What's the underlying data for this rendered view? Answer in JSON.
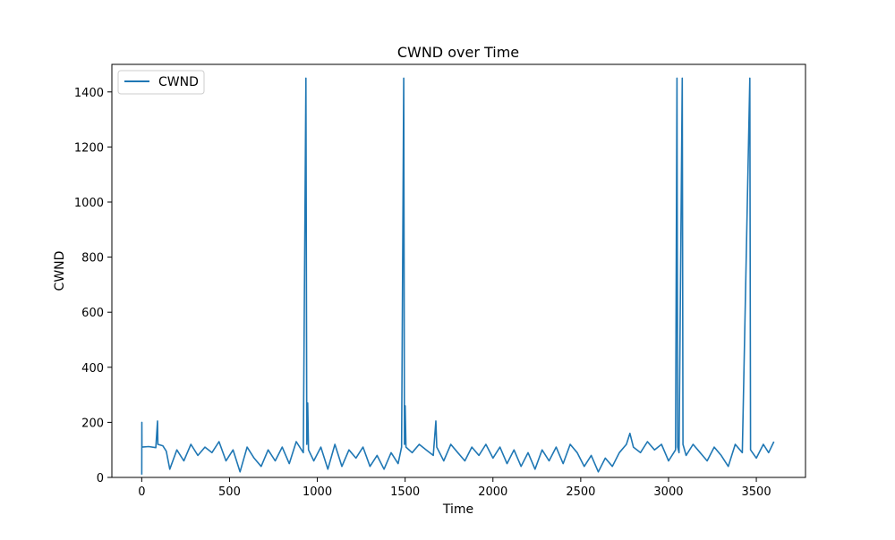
{
  "chart_data": {
    "type": "line",
    "title": "CWND over Time",
    "xlabel": "Time",
    "ylabel": "CWND",
    "xlim": [
      -170,
      3780
    ],
    "ylim": [
      0,
      1500
    ],
    "xticks": [
      0,
      500,
      1000,
      1500,
      2000,
      2500,
      3000,
      3500
    ],
    "yticks": [
      0,
      200,
      400,
      600,
      800,
      1000,
      1200,
      1400
    ],
    "x_range": [
      0,
      3600
    ],
    "grid": false,
    "legend": {
      "position": "upper-left",
      "entries": [
        "CWND"
      ]
    },
    "series": [
      {
        "name": "CWND",
        "color": "#1f77b4",
        "points": [
          [
            0,
            10
          ],
          [
            0.5,
            200
          ],
          [
            1,
            110
          ],
          [
            40,
            112
          ],
          [
            80,
            108
          ],
          [
            90,
            205
          ],
          [
            92,
            120
          ],
          [
            120,
            115
          ],
          [
            140,
            95
          ],
          [
            160,
            30
          ],
          [
            200,
            100
          ],
          [
            240,
            60
          ],
          [
            280,
            120
          ],
          [
            320,
            80
          ],
          [
            360,
            110
          ],
          [
            400,
            90
          ],
          [
            440,
            130
          ],
          [
            480,
            60
          ],
          [
            520,
            100
          ],
          [
            560,
            20
          ],
          [
            600,
            110
          ],
          [
            640,
            70
          ],
          [
            680,
            40
          ],
          [
            720,
            100
          ],
          [
            760,
            60
          ],
          [
            800,
            110
          ],
          [
            840,
            50
          ],
          [
            880,
            130
          ],
          [
            920,
            90
          ],
          [
            935,
            1450
          ],
          [
            940,
            120
          ],
          [
            945,
            270
          ],
          [
            950,
            100
          ],
          [
            980,
            60
          ],
          [
            1020,
            110
          ],
          [
            1060,
            30
          ],
          [
            1100,
            120
          ],
          [
            1140,
            40
          ],
          [
            1180,
            100
          ],
          [
            1220,
            70
          ],
          [
            1260,
            110
          ],
          [
            1300,
            40
          ],
          [
            1340,
            80
          ],
          [
            1380,
            30
          ],
          [
            1420,
            90
          ],
          [
            1460,
            50
          ],
          [
            1480,
            110
          ],
          [
            1492,
            1450
          ],
          [
            1496,
            120
          ],
          [
            1500,
            260
          ],
          [
            1505,
            110
          ],
          [
            1540,
            90
          ],
          [
            1580,
            120
          ],
          [
            1620,
            100
          ],
          [
            1660,
            80
          ],
          [
            1675,
            205
          ],
          [
            1680,
            110
          ],
          [
            1720,
            60
          ],
          [
            1760,
            120
          ],
          [
            1800,
            90
          ],
          [
            1840,
            60
          ],
          [
            1880,
            110
          ],
          [
            1920,
            80
          ],
          [
            1960,
            120
          ],
          [
            2000,
            70
          ],
          [
            2040,
            110
          ],
          [
            2080,
            50
          ],
          [
            2120,
            100
          ],
          [
            2160,
            40
          ],
          [
            2200,
            90
          ],
          [
            2240,
            30
          ],
          [
            2280,
            100
          ],
          [
            2320,
            60
          ],
          [
            2360,
            110
          ],
          [
            2400,
            50
          ],
          [
            2440,
            120
          ],
          [
            2480,
            90
          ],
          [
            2520,
            40
          ],
          [
            2560,
            80
          ],
          [
            2600,
            20
          ],
          [
            2640,
            70
          ],
          [
            2680,
            40
          ],
          [
            2720,
            90
          ],
          [
            2760,
            120
          ],
          [
            2780,
            160
          ],
          [
            2800,
            110
          ],
          [
            2840,
            90
          ],
          [
            2880,
            130
          ],
          [
            2920,
            100
          ],
          [
            2960,
            120
          ],
          [
            3000,
            60
          ],
          [
            3040,
            100
          ],
          [
            3048,
            1450
          ],
          [
            3052,
            110
          ],
          [
            3060,
            90
          ],
          [
            3078,
            1450
          ],
          [
            3082,
            120
          ],
          [
            3100,
            80
          ],
          [
            3140,
            120
          ],
          [
            3180,
            90
          ],
          [
            3220,
            60
          ],
          [
            3260,
            110
          ],
          [
            3300,
            80
          ],
          [
            3340,
            40
          ],
          [
            3380,
            120
          ],
          [
            3420,
            90
          ],
          [
            3463,
            1450
          ],
          [
            3467,
            100
          ],
          [
            3500,
            70
          ],
          [
            3540,
            120
          ],
          [
            3570,
            90
          ],
          [
            3600,
            130
          ]
        ]
      }
    ]
  }
}
